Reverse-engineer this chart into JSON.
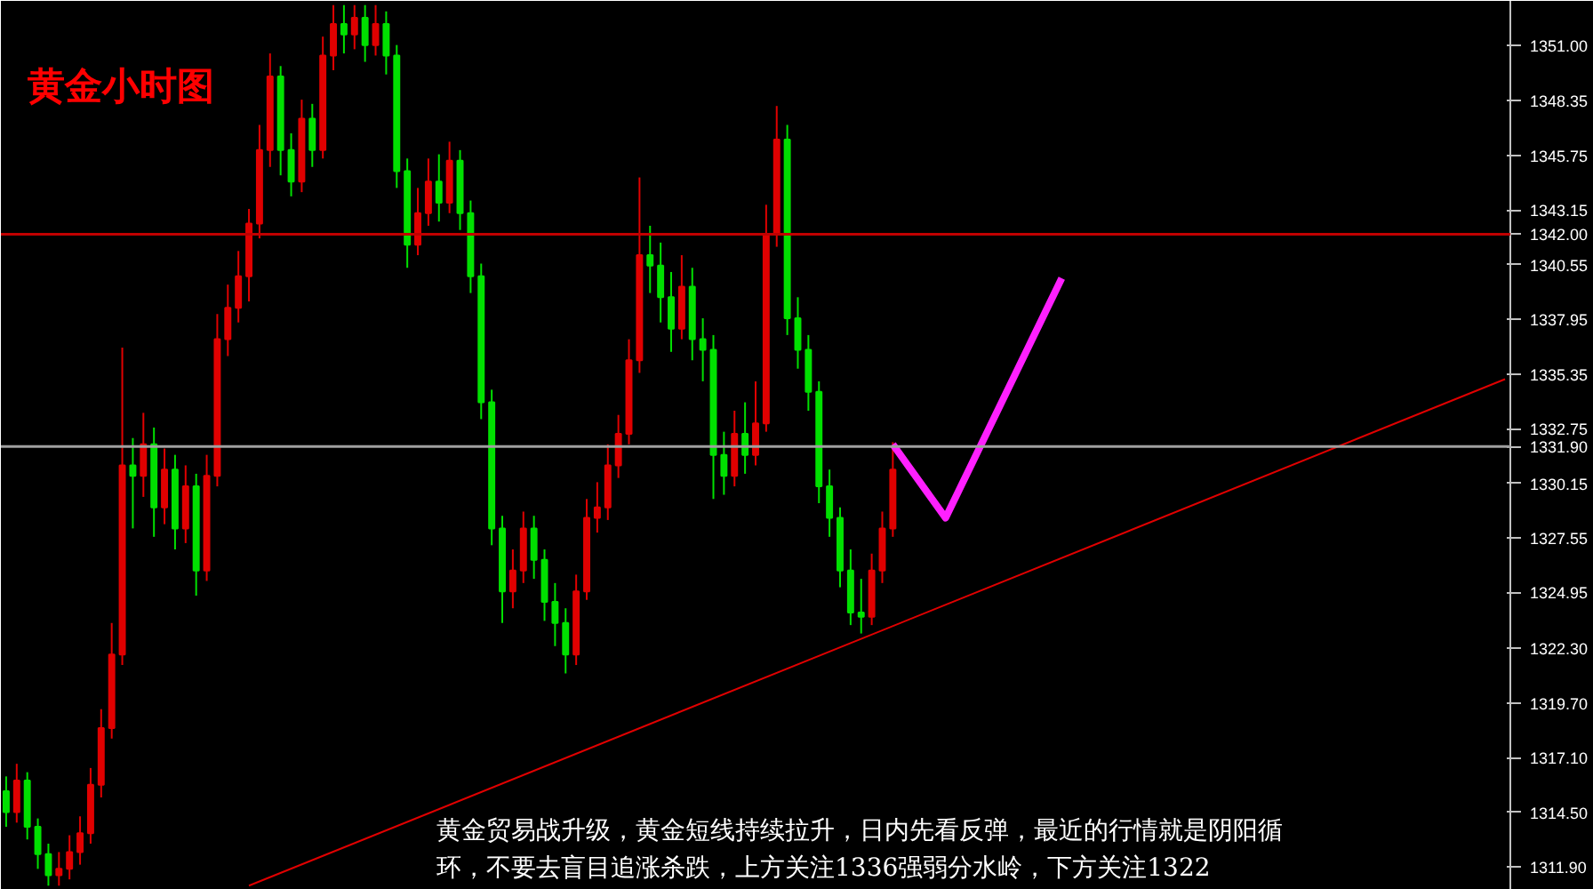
{
  "chart_data": {
    "type": "candlestick",
    "title": "黄金小时图",
    "annotations": [
      "黄金贸易战升级，黄金短线持续拉升，日内先看反弹，最近的行情就是阴阳循环，不要去盲目追涨杀跌，上方关注1336强弱分水岭，下方关注1322"
    ],
    "ylim": [
      1310.8,
      1353.1
    ],
    "tick_labels": "y",
    "yticks": [
      {
        "value": 1351.0,
        "label": "1351.00"
      },
      {
        "value": 1348.35,
        "label": "1348.35"
      },
      {
        "value": 1345.75,
        "label": "1345.75"
      },
      {
        "value": 1343.15,
        "label": "1343.15"
      },
      {
        "value": 1340.55,
        "label": "1340.55"
      },
      {
        "value": 1337.95,
        "label": "1337.95"
      },
      {
        "value": 1335.35,
        "label": "1335.35"
      },
      {
        "value": 1332.75,
        "label": "1332.75"
      },
      {
        "value": 1330.15,
        "label": "1330.15"
      },
      {
        "value": 1327.55,
        "label": "1327.55"
      },
      {
        "value": 1324.95,
        "label": "1324.95"
      },
      {
        "value": 1322.3,
        "label": "1322.30"
      },
      {
        "value": 1319.7,
        "label": "1319.70"
      },
      {
        "value": 1317.1,
        "label": "1317.10"
      },
      {
        "value": 1314.5,
        "label": "1314.50"
      },
      {
        "value": 1311.9,
        "label": "1311.90"
      }
    ],
    "ref_lines": [
      {
        "axis": "y",
        "value": 1342.0,
        "label": "1342.00",
        "color": "#c00000"
      },
      {
        "axis": "y",
        "value": 1331.9,
        "label": "1331.90",
        "color": "#a0a0a0"
      }
    ],
    "categories": [
      null,
      null,
      null,
      null,
      null,
      null,
      null,
      null,
      null,
      null,
      null,
      null,
      null,
      null,
      null,
      null,
      null,
      null,
      null,
      null,
      null,
      null,
      null,
      null,
      null,
      null,
      null,
      null,
      null,
      null,
      null,
      null,
      null,
      null,
      null,
      null,
      null,
      null,
      null,
      null,
      null,
      null,
      null,
      null,
      null,
      null,
      null,
      null,
      null,
      null,
      null,
      null,
      null,
      null,
      null,
      null,
      null,
      null,
      null,
      null,
      null,
      null,
      null,
      null,
      null,
      null,
      null,
      null,
      null,
      null,
      null,
      null,
      null,
      null,
      null,
      null,
      null,
      null,
      null,
      null,
      null,
      null,
      null,
      null,
      null,
      null,
      null,
      null,
      null,
      null,
      null,
      null,
      null,
      null,
      null,
      null,
      null,
      null,
      null,
      null,
      null,
      null,
      null,
      null,
      null,
      null,
      null,
      null,
      null,
      null,
      null,
      null,
      null,
      null,
      null,
      null,
      null,
      null,
      null,
      null,
      null,
      null,
      null,
      null,
      null,
      null,
      null,
      null,
      null,
      null,
      null,
      null,
      null,
      null,
      null,
      null,
      null,
      null,
      null,
      null,
      null,
      null,
      null
    ],
    "ohlc": [
      [
        1315.5,
        1316.2,
        1313.8,
        1314.5
      ],
      [
        1314.5,
        1316.8,
        1314.0,
        1316.0
      ],
      [
        1316.0,
        1316.4,
        1313.2,
        1313.8
      ],
      [
        1313.8,
        1314.2,
        1311.8,
        1312.5
      ],
      [
        1312.5,
        1313.0,
        1311.0,
        1311.5
      ],
      [
        1311.5,
        1312.6,
        1311.0,
        1311.8
      ],
      [
        1311.8,
        1313.4,
        1311.3,
        1312.6
      ],
      [
        1312.6,
        1314.3,
        1312.0,
        1313.5
      ],
      [
        1313.5,
        1316.6,
        1313.0,
        1315.8
      ],
      [
        1315.8,
        1319.4,
        1315.2,
        1318.5
      ],
      [
        1318.5,
        1323.5,
        1318.0,
        1322.0
      ],
      [
        1322.0,
        1336.6,
        1321.5,
        1331.0
      ],
      [
        1331.0,
        1332.3,
        1328.0,
        1330.5
      ],
      [
        1330.5,
        1333.5,
        1329.5,
        1332.0
      ],
      [
        1332.0,
        1332.8,
        1327.6,
        1329.0
      ],
      [
        1329.0,
        1331.8,
        1328.2,
        1330.8
      ],
      [
        1330.8,
        1331.5,
        1327.0,
        1328.0
      ],
      [
        1328.0,
        1331.0,
        1327.3,
        1330.0
      ],
      [
        1330.0,
        1330.6,
        1324.8,
        1326.0
      ],
      [
        1326.0,
        1331.5,
        1325.5,
        1330.5
      ],
      [
        1330.5,
        1338.2,
        1330.0,
        1337.0
      ],
      [
        1337.0,
        1339.6,
        1336.2,
        1338.5
      ],
      [
        1338.5,
        1341.2,
        1337.8,
        1340.0
      ],
      [
        1340.0,
        1343.2,
        1338.8,
        1342.5
      ],
      [
        1342.5,
        1347.2,
        1341.8,
        1346.0
      ],
      [
        1346.0,
        1350.6,
        1345.2,
        1349.5
      ],
      [
        1349.5,
        1350.0,
        1344.8,
        1346.0
      ],
      [
        1346.0,
        1346.8,
        1343.8,
        1344.5
      ],
      [
        1344.5,
        1348.4,
        1344.0,
        1347.5
      ],
      [
        1347.5,
        1348.2,
        1345.2,
        1346.0
      ],
      [
        1346.0,
        1351.4,
        1345.6,
        1350.5
      ],
      [
        1350.5,
        1352.9,
        1349.8,
        1352.0
      ],
      [
        1352.0,
        1352.9,
        1350.6,
        1351.5
      ],
      [
        1351.5,
        1352.9,
        1350.8,
        1352.3
      ],
      [
        1352.3,
        1352.9,
        1350.2,
        1351.0
      ],
      [
        1351.0,
        1352.9,
        1350.5,
        1352.0
      ],
      [
        1352.0,
        1352.6,
        1349.6,
        1350.5
      ],
      [
        1350.5,
        1351.0,
        1344.2,
        1345.0
      ],
      [
        1345.0,
        1345.6,
        1340.4,
        1341.5
      ],
      [
        1341.5,
        1344.2,
        1341.0,
        1343.0
      ],
      [
        1343.0,
        1345.6,
        1342.4,
        1344.5
      ],
      [
        1344.5,
        1345.8,
        1342.6,
        1343.5
      ],
      [
        1343.5,
        1346.4,
        1343.0,
        1345.5
      ],
      [
        1345.5,
        1346.0,
        1342.2,
        1343.0
      ],
      [
        1343.0,
        1343.6,
        1339.2,
        1340.0
      ],
      [
        1340.0,
        1340.6,
        1333.2,
        1334.0
      ],
      [
        1334.0,
        1334.6,
        1327.2,
        1328.0
      ],
      [
        1328.0,
        1328.6,
        1323.5,
        1325.0
      ],
      [
        1325.0,
        1327.0,
        1324.2,
        1326.0
      ],
      [
        1326.0,
        1328.8,
        1325.4,
        1328.0
      ],
      [
        1328.0,
        1328.6,
        1325.6,
        1326.5
      ],
      [
        1326.5,
        1327.0,
        1323.6,
        1324.5
      ],
      [
        1324.5,
        1325.4,
        1322.4,
        1323.5
      ],
      [
        1323.5,
        1324.2,
        1321.1,
        1322.0
      ],
      [
        1322.0,
        1325.8,
        1321.5,
        1325.0
      ],
      [
        1325.0,
        1329.4,
        1324.6,
        1328.5
      ],
      [
        1328.5,
        1330.2,
        1327.8,
        1329.0
      ],
      [
        1329.0,
        1332.0,
        1328.4,
        1331.0
      ],
      [
        1331.0,
        1333.4,
        1330.4,
        1332.5
      ],
      [
        1332.5,
        1337.0,
        1332.0,
        1336.0
      ],
      [
        1336.0,
        1344.7,
        1335.4,
        1341.0
      ],
      [
        1341.0,
        1342.4,
        1339.2,
        1340.5
      ],
      [
        1340.5,
        1341.6,
        1337.8,
        1339.0
      ],
      [
        1339.0,
        1340.2,
        1336.4,
        1337.5
      ],
      [
        1337.5,
        1341.0,
        1337.0,
        1339.5
      ],
      [
        1339.5,
        1340.4,
        1336.0,
        1337.0
      ],
      [
        1337.0,
        1338.0,
        1335.0,
        1336.5
      ],
      [
        1336.5,
        1337.2,
        1329.4,
        1331.5
      ],
      [
        1331.5,
        1332.6,
        1329.6,
        1330.5
      ],
      [
        1330.5,
        1333.6,
        1330.0,
        1332.5
      ],
      [
        1332.5,
        1334.0,
        1330.6,
        1331.5
      ],
      [
        1331.5,
        1335.0,
        1331.0,
        1333.0
      ],
      [
        1333.0,
        1343.4,
        1332.6,
        1342.0
      ],
      [
        1342.0,
        1348.1,
        1341.4,
        1346.5
      ],
      [
        1346.5,
        1347.2,
        1337.2,
        1338.0
      ],
      [
        1338.0,
        1339.0,
        1335.6,
        1336.5
      ],
      [
        1336.5,
        1337.2,
        1333.6,
        1334.5
      ],
      [
        1334.5,
        1335.0,
        1329.2,
        1330.0
      ],
      [
        1330.0,
        1330.8,
        1327.6,
        1328.5
      ],
      [
        1328.5,
        1329.0,
        1325.2,
        1326.0
      ],
      [
        1326.0,
        1327.0,
        1323.4,
        1324.0
      ],
      [
        1324.0,
        1325.6,
        1323.0,
        1323.8
      ],
      [
        1323.8,
        1326.8,
        1323.4,
        1326.0
      ],
      [
        1326.0,
        1328.8,
        1325.4,
        1328.0
      ],
      [
        1328.0,
        1332.1,
        1327.6,
        1330.8
      ],
      null,
      null,
      null,
      null,
      null,
      null,
      null,
      null,
      null,
      null,
      null,
      null,
      null,
      null,
      null,
      null,
      null,
      null,
      null,
      null,
      null,
      null,
      null,
      null,
      null,
      null,
      null,
      null,
      null,
      null,
      null,
      null,
      null,
      null,
      null,
      null,
      null,
      null,
      null,
      null,
      null,
      null,
      null,
      null,
      null,
      null,
      null,
      null,
      null,
      null,
      null,
      null,
      null,
      null,
      null,
      null,
      null,
      null
    ],
    "colors": [
      "#00e000",
      "#e00000",
      "#00e000",
      "#00e000",
      "#00e000",
      "#e00000",
      "#e00000",
      "#e00000",
      "#e00000",
      "#e00000",
      "#e00000",
      "#e00000",
      "#00e000",
      "#e00000",
      "#00e000",
      "#e00000",
      "#00e000",
      "#e00000",
      "#00e000",
      "#e00000",
      "#e00000",
      "#e00000",
      "#e00000",
      "#e00000",
      "#e00000",
      "#e00000",
      "#00e000",
      "#00e000",
      "#e00000",
      "#00e000",
      "#e00000",
      "#e00000",
      "#00e000",
      "#e00000",
      "#00e000",
      "#e00000",
      "#00e000",
      "#00e000",
      "#00e000",
      "#e00000",
      "#e00000",
      "#00e000",
      "#e00000",
      "#00e000",
      "#00e000",
      "#00e000",
      "#00e000",
      "#00e000",
      "#e00000",
      "#e00000",
      "#00e000",
      "#00e000",
      "#00e000",
      "#00e000",
      "#e00000",
      "#e00000",
      "#e00000",
      "#e00000",
      "#e00000",
      "#e00000",
      "#e00000",
      "#00e000",
      "#00e000",
      "#00e000",
      "#e00000",
      "#00e000",
      "#00e000",
      "#00e000",
      "#00e000",
      "#e00000",
      "#00e000",
      "#e00000",
      "#e00000",
      "#e00000",
      "#00e000",
      "#00e000",
      "#00e000",
      "#00e000",
      "#00e000",
      "#00e000",
      "#00e000",
      "#00e000",
      "#e00000",
      "#e00000",
      "#e00000",
      null,
      null,
      null,
      null,
      null,
      null,
      null,
      null,
      null,
      null,
      null,
      null,
      null,
      null,
      null,
      null,
      null,
      null,
      null,
      null,
      null,
      null,
      null,
      null,
      null,
      null,
      null,
      null,
      null,
      null,
      null,
      null,
      null,
      null,
      null,
      null,
      null,
      null,
      null,
      null,
      null,
      null,
      null,
      null,
      null,
      null,
      null,
      null,
      null,
      null,
      null,
      null,
      null,
      null,
      null,
      null,
      null,
      null
    ],
    "series": [
      {
        "type": "line",
        "color": "#e00000",
        "values": [
          null,
          null,
          null,
          null,
          null,
          null,
          null,
          null,
          null,
          null,
          null,
          null,
          null,
          null,
          null,
          null,
          null,
          null,
          null,
          null,
          null,
          null,
          null,
          1311.0,
          null,
          null,
          null,
          null,
          null,
          null,
          null,
          null,
          null,
          null,
          null,
          null,
          null,
          null,
          null,
          null,
          null,
          null,
          null,
          null,
          null,
          null,
          null,
          null,
          null,
          null,
          null,
          null,
          null,
          null,
          null,
          null,
          null,
          null,
          null,
          null,
          null,
          null,
          null,
          null,
          null,
          null,
          null,
          null,
          null,
          null,
          null,
          null,
          null,
          null,
          null,
          null,
          null,
          null,
          null,
          null,
          null,
          null,
          null,
          null,
          null,
          null,
          null,
          null,
          null,
          null,
          null,
          null,
          null,
          null,
          null,
          null,
          null,
          null,
          null,
          null,
          null,
          null,
          null,
          null,
          null,
          null,
          null,
          null,
          null,
          null,
          null,
          null,
          null,
          null,
          null,
          null,
          null,
          null,
          null,
          null,
          null,
          null,
          null,
          null,
          null,
          null,
          null,
          null,
          null,
          null,
          null,
          null,
          null,
          null,
          null,
          null,
          null,
          null,
          null,
          null,
          null,
          null,
          1335.1
        ]
      },
      {
        "type": "line",
        "color": "#ff20ff",
        "values": [
          null,
          null,
          null,
          null,
          null,
          null,
          null,
          null,
          null,
          null,
          null,
          null,
          null,
          null,
          null,
          null,
          null,
          null,
          null,
          null,
          null,
          null,
          null,
          null,
          null,
          null,
          null,
          null,
          null,
          null,
          null,
          null,
          null,
          null,
          null,
          null,
          null,
          null,
          null,
          null,
          null,
          null,
          null,
          null,
          null,
          null,
          null,
          null,
          null,
          null,
          null,
          null,
          null,
          null,
          null,
          null,
          null,
          null,
          null,
          null,
          null,
          null,
          null,
          null,
          null,
          null,
          null,
          null,
          null,
          null,
          null,
          null,
          null,
          null,
          null,
          null,
          null,
          null,
          null,
          null,
          null,
          null,
          null,
          null,
          1332.0,
          null,
          null,
          null,
          null,
          1328.5,
          null,
          null,
          null,
          null,
          null,
          null,
          null,
          null,
          null,
          null,
          1339.9,
          null,
          null,
          null,
          null,
          null,
          null,
          null,
          null,
          null,
          null,
          null,
          null,
          null,
          null,
          null,
          null,
          null,
          null,
          null,
          null,
          null,
          null,
          null,
          null,
          null,
          null,
          null,
          null,
          null,
          null,
          null,
          null,
          null,
          null,
          null,
          null,
          null,
          null,
          null,
          null,
          null,
          null
        ]
      }
    ]
  }
}
